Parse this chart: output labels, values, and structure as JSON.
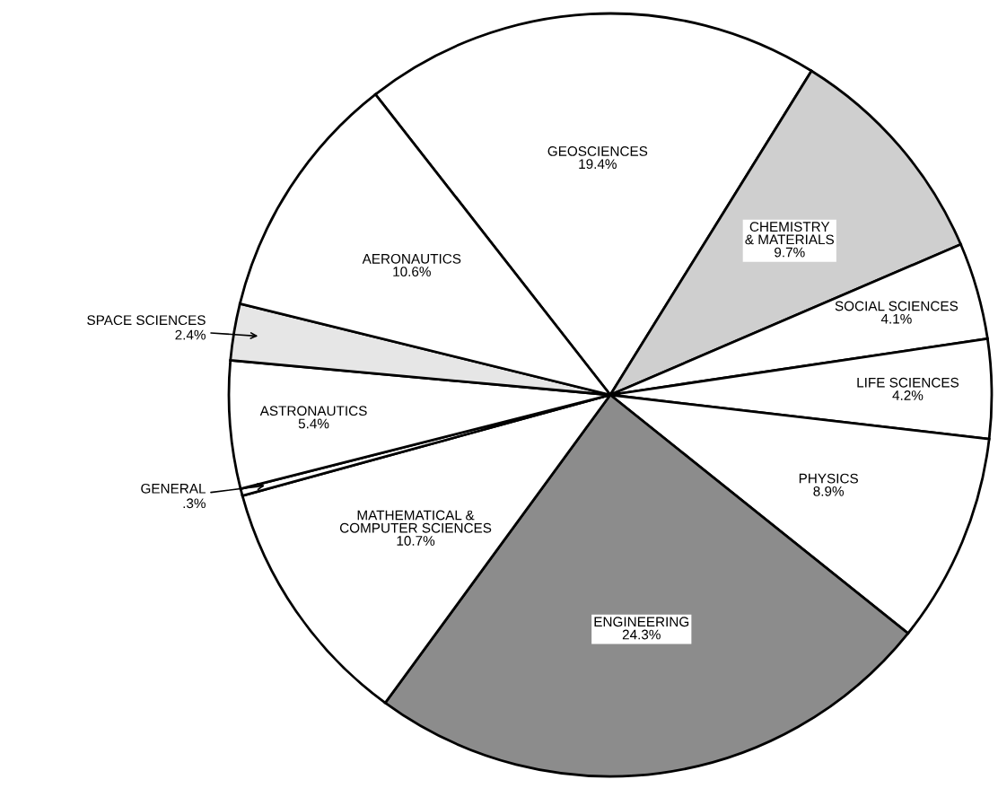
{
  "chart_data": {
    "type": "pie",
    "categories": [
      "GEOSCIENCES",
      "CHEMISTRY\n& MATERIALS",
      "SOCIAL SCIENCES",
      "LIFE SCIENCES",
      "PHYSICS",
      "ENGINEERING",
      "MATHEMATICAL &\nCOMPUTER SCIENCES",
      "GENERAL",
      "ASTRONAUTICS",
      "SPACE SCIENCES",
      "AERONAUTICS"
    ],
    "values": [
      19.4,
      9.7,
      4.1,
      4.2,
      8.9,
      24.3,
      10.7,
      0.3,
      5.4,
      2.4,
      10.6
    ],
    "value_labels": [
      "19.4%",
      "9.7%",
      "4.1%",
      "4.2%",
      "8.9%",
      "24.3%",
      "10.7%",
      ".3%",
      "5.4%",
      "2.4%",
      "10.6%"
    ],
    "colors": [
      "#ffffff",
      "#cfcfcf",
      "#ffffff",
      "#ffffff",
      "#ffffff",
      "#8c8c8c",
      "#ffffff",
      "#ffffff",
      "#ffffff",
      "#e6e6e6",
      "#ffffff"
    ]
  }
}
